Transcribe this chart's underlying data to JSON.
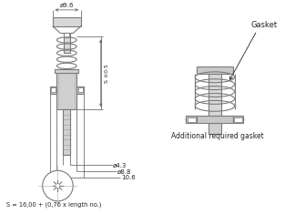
{
  "bg_color": "#ffffff",
  "line_color": "#7a7a7a",
  "dim_color": "#555555",
  "text_color": "#222222",
  "title_text": "S = 16,00 + (0,76 x length no.)",
  "dim_labels": {
    "d96": "ø9.6",
    "s_s05": "S ±0.5",
    "d43": "ø4.3",
    "d88": "ø8.8",
    "d106": "10.6"
  },
  "gasket_label": "Gasket",
  "additional_label": "Additional required gasket"
}
